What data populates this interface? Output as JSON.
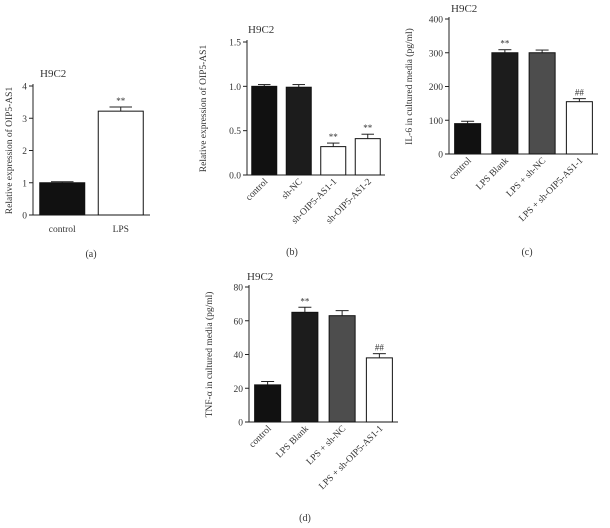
{
  "chart_data": [
    {
      "id": "a",
      "type": "bar",
      "panel_label": "(a)",
      "title": "H9C2",
      "ylabel": "Relative expression of OIP5-AS1",
      "xlabel": "",
      "ylim": [
        0,
        4
      ],
      "yticks": [
        0,
        1,
        2,
        3,
        4
      ],
      "categories": [
        "control",
        "LPS"
      ],
      "values": [
        1.0,
        3.22
      ],
      "errors": [
        0.03,
        0.13
      ],
      "significance": [
        "",
        "**"
      ],
      "colors": [
        "#111111",
        "#ffffff"
      ],
      "rotate_labels": false
    },
    {
      "id": "b",
      "type": "bar",
      "panel_label": "(b)",
      "title": "H9C2",
      "ylabel": "Relative expression of OIP5-AS1",
      "xlabel": "",
      "ylim": [
        0,
        1.5
      ],
      "yticks": [
        0.0,
        0.5,
        1.0,
        1.5
      ],
      "categories": [
        "control",
        "sh-NC",
        "sh-OIP5-AS1-1",
        "sh-OIP5-AS1-2"
      ],
      "values": [
        1.0,
        0.99,
        0.32,
        0.41
      ],
      "errors": [
        0.02,
        0.03,
        0.04,
        0.05
      ],
      "significance": [
        "",
        "",
        "**",
        "**"
      ],
      "colors": [
        "#111111",
        "#1c1c1c",
        "#ffffff",
        "#ffffff"
      ],
      "rotate_labels": true
    },
    {
      "id": "c",
      "type": "bar",
      "panel_label": "(c)",
      "title": "H9C2",
      "ylabel": "IL-6 in cultured media (pg/ml)",
      "xlabel": "",
      "ylim": [
        0,
        400
      ],
      "yticks": [
        0,
        100,
        200,
        300,
        400
      ],
      "categories": [
        "control",
        "LPS Blank",
        "LPS + sh-NC",
        "LPS + sh-OIP5-AS1-1"
      ],
      "values": [
        90,
        300,
        300,
        155
      ],
      "errors": [
        7,
        9,
        8,
        9
      ],
      "significance": [
        "",
        "**",
        "",
        "##"
      ],
      "colors": [
        "#111111",
        "#1c1c1c",
        "#4d4d4d",
        "#ffffff"
      ],
      "rotate_labels": true
    },
    {
      "id": "d",
      "type": "bar",
      "panel_label": "(d)",
      "title": "H9C2",
      "ylabel": "TNF-α in cultured media (pg/ml)",
      "xlabel": "",
      "ylim": [
        0,
        80
      ],
      "yticks": [
        0,
        20,
        40,
        60,
        80
      ],
      "categories": [
        "control",
        "LPS Blank",
        "LPS + sh-NC",
        "LPS + sh-OIP5-AS1-1"
      ],
      "values": [
        22,
        65,
        63,
        38
      ],
      "errors": [
        2,
        3,
        3,
        2.5
      ],
      "significance": [
        "",
        "**",
        "",
        "##"
      ],
      "colors": [
        "#111111",
        "#1c1c1c",
        "#4d4d4d",
        "#ffffff"
      ],
      "rotate_labels": true
    }
  ]
}
